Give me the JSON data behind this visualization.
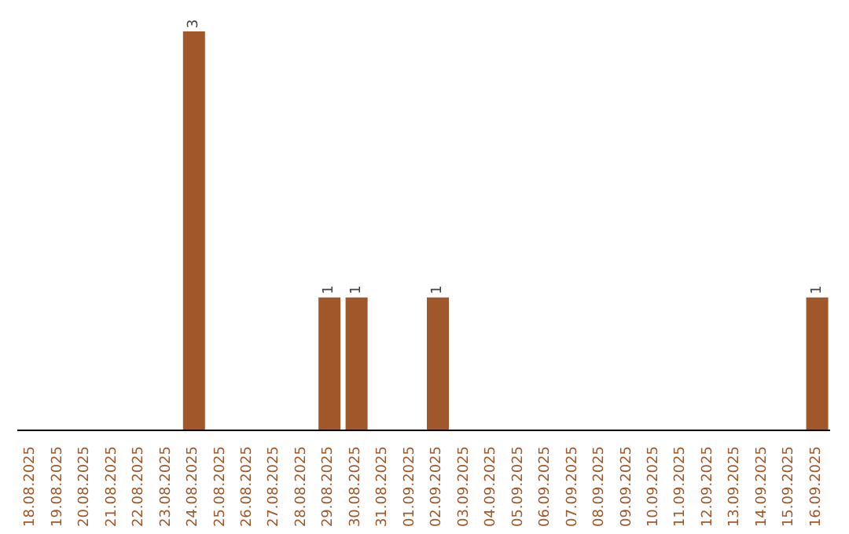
{
  "chart_data": {
    "type": "bar",
    "categories": [
      "18.08.2025",
      "19.08.2025",
      "20.08.2025",
      "21.08.2025",
      "22.08.2025",
      "23.08.2025",
      "24.08.2025",
      "25.08.2025",
      "26.08.2025",
      "27.08.2025",
      "28.08.2025",
      "29.08.2025",
      "30.08.2025",
      "31.08.2025",
      "01.09.2025",
      "02.09.2025",
      "03.09.2025",
      "04.09.2025",
      "05.09.2025",
      "06.09.2025",
      "07.09.2025",
      "08.09.2025",
      "09.09.2025",
      "10.09.2025",
      "11.09.2025",
      "12.09.2025",
      "13.09.2025",
      "14.09.2025",
      "15.09.2025",
      "16.09.2025"
    ],
    "values": [
      0,
      0,
      0,
      0,
      0,
      0,
      3,
      0,
      0,
      0,
      0,
      1,
      1,
      0,
      0,
      1,
      0,
      0,
      0,
      0,
      0,
      0,
      0,
      0,
      0,
      0,
      0,
      0,
      0,
      1
    ],
    "value_labels": [
      null,
      null,
      null,
      null,
      null,
      null,
      "3",
      null,
      null,
      null,
      null,
      "1",
      "1",
      null,
      null,
      "1",
      null,
      null,
      null,
      null,
      null,
      null,
      null,
      null,
      null,
      null,
      null,
      null,
      null,
      "1"
    ],
    "color": "#a0582a",
    "grid": false,
    "legend": false
  }
}
